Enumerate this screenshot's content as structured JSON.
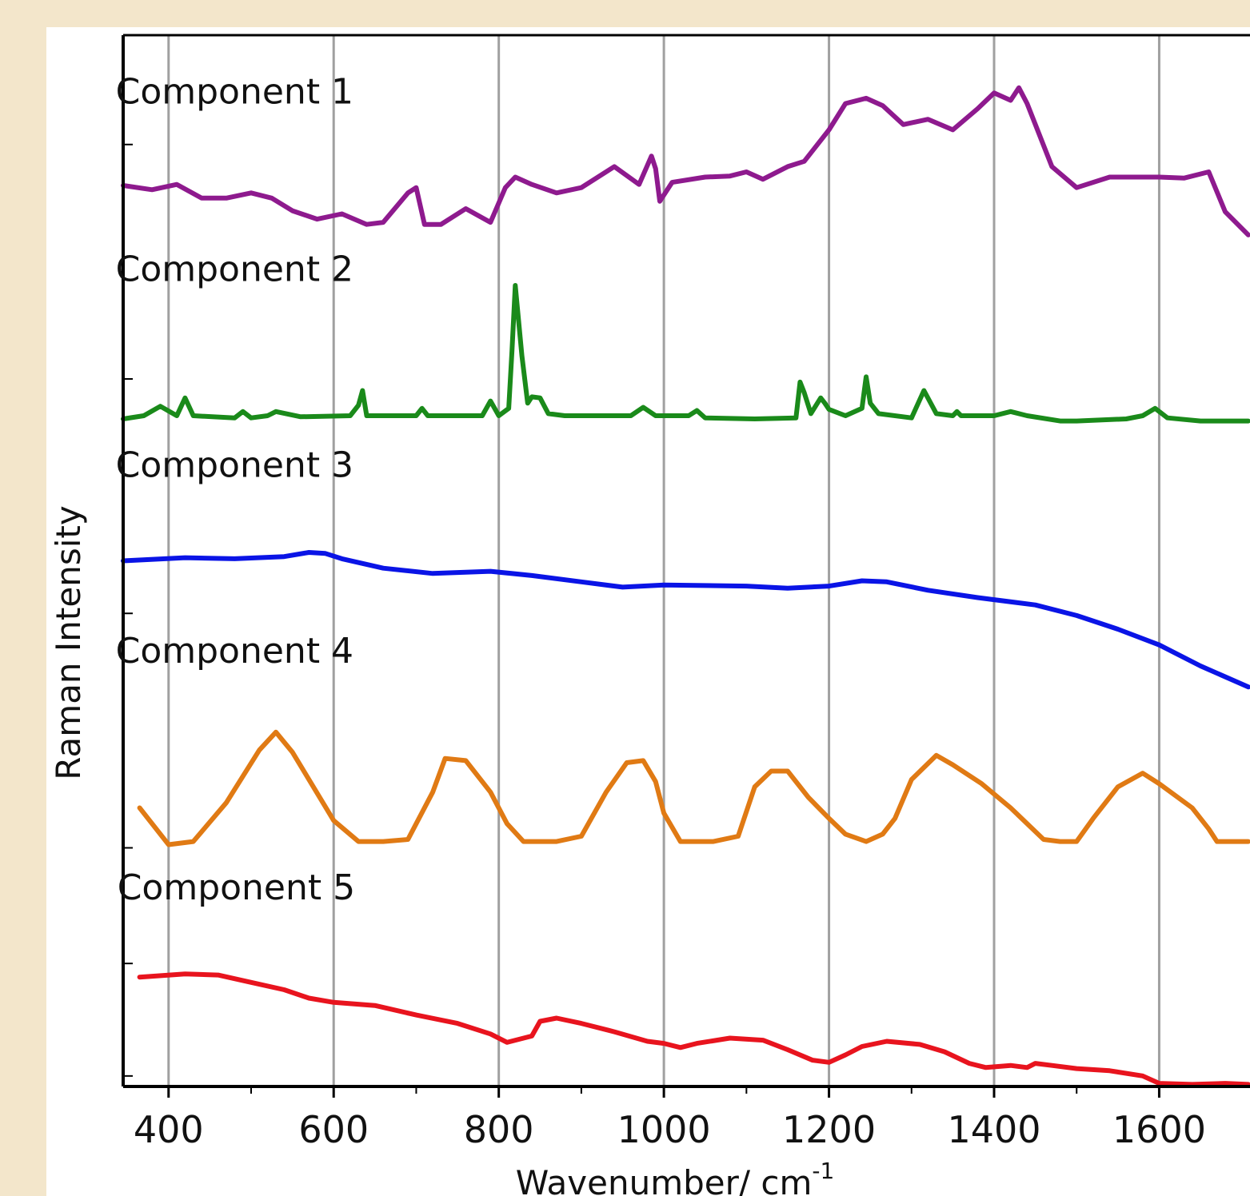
{
  "chart_data": {
    "type": "line",
    "title": "",
    "xlabel": "Wavenumber/ cm",
    "xlabel_sup": "-1",
    "ylabel": "Raman Intensity",
    "xlim": [
      345,
      1710
    ],
    "ylim": [
      0,
      10
    ],
    "x_ticks": [
      400,
      600,
      800,
      1000,
      1200,
      1400,
      1600
    ],
    "x_tick_labels": [
      "400",
      "600",
      "800",
      "1000",
      "1200",
      "1400",
      "1600"
    ],
    "x_minor_ticks": [
      500,
      700,
      900,
      1100,
      1300,
      1500
    ],
    "y_tick_values_hidden": [
      0.1,
      1.17,
      2.27,
      4.5,
      6.73,
      8.96
    ],
    "grid": {
      "vertical_major": true,
      "horizontal": false,
      "color": "#a0a0a0"
    },
    "legend": "inline labels above each trace",
    "series": [
      {
        "name": "Component 1",
        "color": "#8e1a8e",
        "label_pos": {
          "x": 480,
          "y": 9.35
        },
        "x": [
          345,
          380,
          410,
          440,
          470,
          500,
          525,
          550,
          580,
          610,
          625,
          640,
          660,
          690,
          700,
          710,
          730,
          760,
          790,
          808,
          820,
          840,
          870,
          900,
          940,
          970,
          985,
          990,
          995,
          1010,
          1050,
          1080,
          1100,
          1120,
          1150,
          1170,
          1200,
          1220,
          1245,
          1265,
          1290,
          1320,
          1350,
          1380,
          1400,
          1420,
          1430,
          1440,
          1470,
          1500,
          1540,
          1600,
          1630,
          1660,
          1680,
          1708
        ],
        "y": [
          8.57,
          8.53,
          8.58,
          8.45,
          8.45,
          8.5,
          8.45,
          8.33,
          8.25,
          8.3,
          8.25,
          8.2,
          8.22,
          8.5,
          8.55,
          8.2,
          8.2,
          8.35,
          8.22,
          8.55,
          8.65,
          8.58,
          8.5,
          8.55,
          8.75,
          8.58,
          8.85,
          8.73,
          8.42,
          8.6,
          8.65,
          8.66,
          8.7,
          8.63,
          8.75,
          8.8,
          9.1,
          9.35,
          9.4,
          9.33,
          9.15,
          9.2,
          9.1,
          9.3,
          9.45,
          9.38,
          9.5,
          9.35,
          8.75,
          8.55,
          8.65,
          8.65,
          8.64,
          8.7,
          8.32,
          8.1
        ]
      },
      {
        "name": "Component 2",
        "color": "#1a8a1a",
        "label_pos": {
          "x": 480,
          "y": 7.66
        },
        "x": [
          345,
          370,
          390,
          410,
          420,
          430,
          480,
          490,
          500,
          520,
          530,
          560,
          620,
          630,
          635,
          640,
          700,
          707,
          714,
          780,
          790,
          800,
          812,
          816,
          820,
          828,
          835,
          840,
          850,
          860,
          880,
          960,
          975,
          990,
          1030,
          1040,
          1050,
          1110,
          1160,
          1165,
          1170,
          1178,
          1190,
          1195,
          1200,
          1220,
          1240,
          1245,
          1250,
          1260,
          1300,
          1315,
          1330,
          1350,
          1355,
          1360,
          1400,
          1420,
          1440,
          1480,
          1500,
          1560,
          1580,
          1595,
          1610,
          1650,
          1708
        ],
        "y": [
          6.35,
          6.38,
          6.47,
          6.38,
          6.55,
          6.38,
          6.36,
          6.42,
          6.36,
          6.38,
          6.42,
          6.37,
          6.38,
          6.48,
          6.62,
          6.38,
          6.38,
          6.45,
          6.38,
          6.38,
          6.52,
          6.38,
          6.45,
          7.0,
          7.62,
          6.95,
          6.5,
          6.56,
          6.55,
          6.4,
          6.38,
          6.38,
          6.46,
          6.38,
          6.38,
          6.43,
          6.36,
          6.35,
          6.36,
          6.7,
          6.6,
          6.4,
          6.55,
          6.5,
          6.44,
          6.38,
          6.45,
          6.75,
          6.5,
          6.4,
          6.36,
          6.62,
          6.4,
          6.38,
          6.42,
          6.38,
          6.38,
          6.42,
          6.38,
          6.33,
          6.33,
          6.35,
          6.38,
          6.45,
          6.36,
          6.33,
          6.33
        ]
      },
      {
        "name": "Component 3",
        "color": "#0a14e6",
        "label_pos": {
          "x": 480,
          "y": 5.8
        },
        "x": [
          345,
          420,
          480,
          540,
          570,
          590,
          610,
          660,
          720,
          790,
          840,
          900,
          950,
          1000,
          1100,
          1150,
          1200,
          1240,
          1270,
          1320,
          1380,
          1450,
          1500,
          1550,
          1600,
          1650,
          1708
        ],
        "y": [
          5.0,
          5.03,
          5.02,
          5.04,
          5.08,
          5.07,
          5.02,
          4.93,
          4.88,
          4.9,
          4.86,
          4.8,
          4.75,
          4.77,
          4.76,
          4.74,
          4.76,
          4.81,
          4.8,
          4.72,
          4.65,
          4.58,
          4.48,
          4.35,
          4.2,
          4.0,
          3.8
        ]
      },
      {
        "name": "Component 4",
        "color": "#e07a14",
        "label_pos": {
          "x": 480,
          "y": 4.03
        },
        "x": [
          365,
          400,
          430,
          470,
          510,
          530,
          550,
          600,
          630,
          660,
          690,
          720,
          735,
          760,
          790,
          810,
          830,
          850,
          870,
          900,
          930,
          955,
          975,
          990,
          1000,
          1020,
          1040,
          1060,
          1090,
          1110,
          1130,
          1150,
          1175,
          1200,
          1220,
          1245,
          1265,
          1280,
          1300,
          1330,
          1350,
          1385,
          1420,
          1460,
          1480,
          1500,
          1520,
          1550,
          1580,
          1600,
          1640,
          1660,
          1670,
          1708
        ],
        "y": [
          2.65,
          2.3,
          2.33,
          2.7,
          3.2,
          3.37,
          3.18,
          2.53,
          2.33,
          2.33,
          2.35,
          2.8,
          3.12,
          3.1,
          2.8,
          2.5,
          2.33,
          2.33,
          2.33,
          2.38,
          2.8,
          3.08,
          3.1,
          2.9,
          2.6,
          2.33,
          2.33,
          2.33,
          2.38,
          2.85,
          3.0,
          3.0,
          2.75,
          2.55,
          2.4,
          2.33,
          2.4,
          2.55,
          2.92,
          3.15,
          3.06,
          2.88,
          2.65,
          2.35,
          2.33,
          2.33,
          2.55,
          2.85,
          2.98,
          2.88,
          2.65,
          2.45,
          2.33,
          2.33
        ]
      },
      {
        "name": "Component 5",
        "color": "#e8141e",
        "label_pos": {
          "x": 482,
          "y": 1.78
        },
        "x": [
          365,
          420,
          460,
          500,
          540,
          570,
          600,
          650,
          700,
          750,
          790,
          810,
          840,
          850,
          870,
          900,
          940,
          980,
          1000,
          1020,
          1040,
          1080,
          1120,
          1150,
          1180,
          1200,
          1220,
          1240,
          1270,
          1310,
          1340,
          1370,
          1390,
          1420,
          1440,
          1450,
          1470,
          1500,
          1540,
          1580,
          1600,
          1640,
          1680,
          1708
        ],
        "y": [
          1.04,
          1.07,
          1.06,
          0.99,
          0.92,
          0.84,
          0.8,
          0.77,
          0.68,
          0.6,
          0.5,
          0.42,
          0.48,
          0.62,
          0.65,
          0.6,
          0.52,
          0.43,
          0.41,
          0.37,
          0.41,
          0.46,
          0.44,
          0.35,
          0.25,
          0.23,
          0.3,
          0.38,
          0.43,
          0.4,
          0.33,
          0.22,
          0.18,
          0.2,
          0.18,
          0.22,
          0.2,
          0.17,
          0.15,
          0.1,
          0.03,
          0.02,
          0.03,
          0.02
        ]
      }
    ]
  }
}
